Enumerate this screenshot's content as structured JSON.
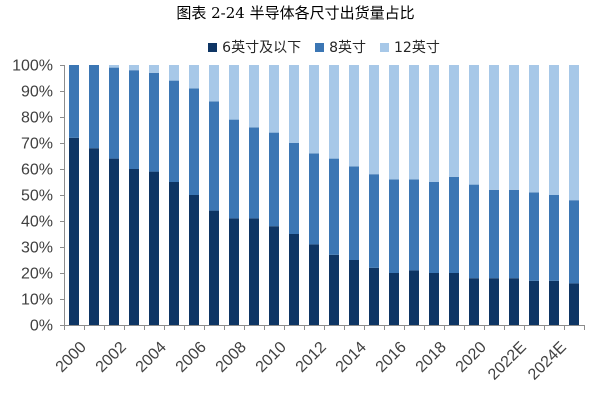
{
  "chart_data": {
    "type": "bar",
    "stacked": true,
    "normalized_to_100": true,
    "title": "图表 2-24 半导体各尺寸出货量占比",
    "xlabel": "",
    "ylabel": "",
    "categories": [
      "2000",
      "",
      "2002",
      "",
      "2004",
      "",
      "2006",
      "",
      "2008",
      "",
      "2010",
      "",
      "2012",
      "",
      "2014",
      "",
      "2016",
      "",
      "2018",
      "",
      "2020",
      "",
      "2022E",
      "",
      "2024E",
      ""
    ],
    "series": [
      {
        "name": "6英寸及以下",
        "color": "#0e3564",
        "values": [
          72,
          68,
          64,
          60,
          59,
          55,
          50,
          44,
          41,
          41,
          38,
          35,
          31,
          27,
          25,
          22,
          20,
          21,
          20,
          20,
          18,
          18,
          18,
          17,
          17,
          16
        ]
      },
      {
        "name": "8英寸",
        "color": "#3b76b4",
        "values": [
          28,
          32,
          35,
          38,
          38,
          39,
          41,
          42,
          38,
          35,
          36,
          35,
          35,
          37,
          36,
          36,
          36,
          35,
          35,
          37,
          36,
          34,
          34,
          34,
          33,
          32
        ]
      },
      {
        "name": "12英寸",
        "color": "#a7c8e8",
        "values": [
          0,
          0,
          1,
          2,
          3,
          6,
          9,
          14,
          21,
          24,
          26,
          30,
          34,
          36,
          39,
          42,
          44,
          44,
          45,
          43,
          46,
          48,
          48,
          49,
          50,
          52
        ]
      }
    ],
    "ylim": [
      0,
      100
    ],
    "yticks": [
      0,
      10,
      20,
      30,
      40,
      50,
      60,
      70,
      80,
      90,
      100
    ],
    "ytick_labels": [
      "0%",
      "10%",
      "20%",
      "30%",
      "40%",
      "50%",
      "60%",
      "70%",
      "80%",
      "90%",
      "100%"
    ],
    "grid": false,
    "legend_position": "top"
  }
}
